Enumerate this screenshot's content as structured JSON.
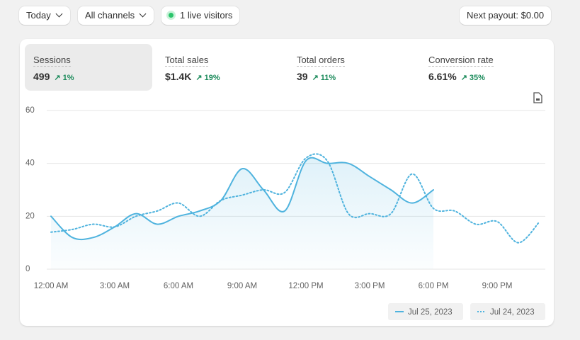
{
  "toolbar": {
    "date": "Today",
    "channels": "All channels",
    "live": "1 live visitors",
    "payout": "Next payout: $0.00"
  },
  "metrics": [
    {
      "label": "Sessions",
      "value": "499",
      "change": "1%"
    },
    {
      "label": "Total sales",
      "value": "$1.4K",
      "change": "19%"
    },
    {
      "label": "Total orders",
      "value": "39",
      "change": "11%"
    },
    {
      "label": "Conversion rate",
      "value": "6.61%",
      "change": "35%"
    }
  ],
  "chart_data": {
    "type": "line",
    "categories": [
      "12:00 AM",
      null,
      null,
      "3:00 AM",
      null,
      null,
      "6:00 AM",
      null,
      null,
      "9:00 AM",
      null,
      null,
      "12:00 PM",
      null,
      null,
      "3:00 PM",
      null,
      null,
      "6:00 PM",
      null,
      null,
      "9:00 PM",
      null,
      null
    ],
    "series": [
      {
        "name": "Jul 25, 2023",
        "color": "#4fb3de",
        "style": "solid",
        "values": [
          20,
          12,
          12,
          16,
          21,
          17,
          20,
          22,
          26,
          38,
          30,
          22,
          41,
          40,
          40,
          35,
          30,
          25,
          30,
          null,
          null,
          null,
          null,
          null
        ]
      },
      {
        "name": "Jul 24, 2023",
        "color": "#4fb3de",
        "style": "dotted",
        "values": [
          14,
          15,
          17,
          16,
          20,
          22,
          25,
          20,
          26,
          28,
          30,
          29,
          42,
          41,
          21,
          21,
          21,
          36,
          23,
          22,
          17,
          18,
          10,
          18
        ]
      }
    ],
    "ylim": [
      0,
      60
    ],
    "yticks": [
      0,
      20,
      40,
      60
    ],
    "grid": true,
    "legend": "bottom-right"
  }
}
